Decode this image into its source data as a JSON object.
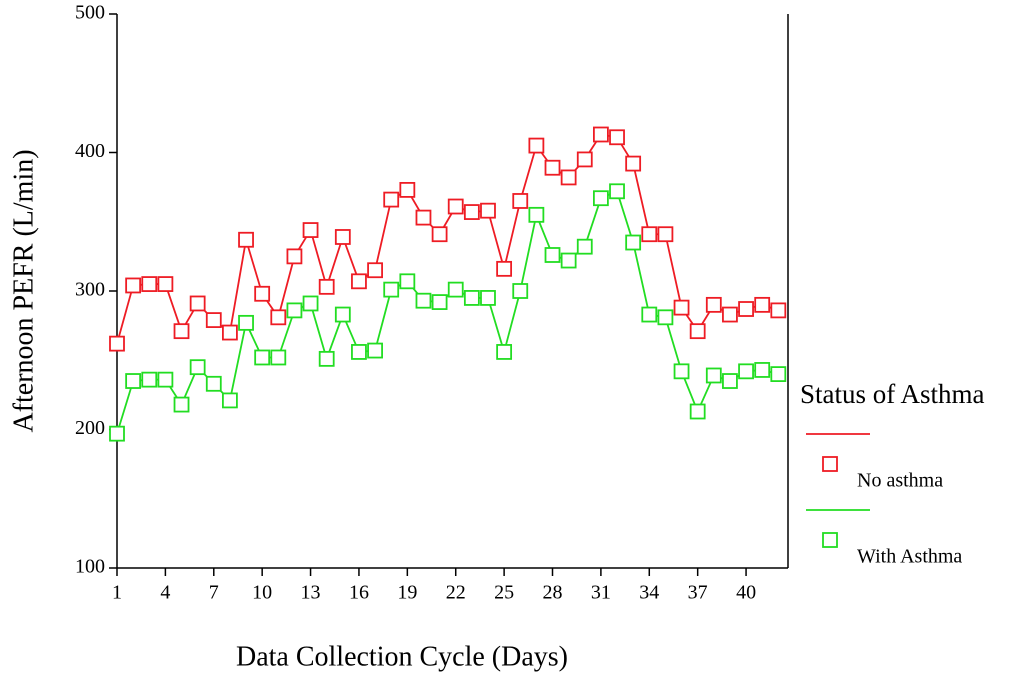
{
  "chart_data": {
    "type": "line",
    "x_label": "Data Collection Cycle (Days)",
    "y_label": "Afternoon PEFR (L/min)",
    "x": [
      1,
      2,
      3,
      4,
      5,
      6,
      7,
      8,
      9,
      10,
      11,
      12,
      13,
      14,
      15,
      16,
      17,
      18,
      19,
      20,
      21,
      22,
      23,
      24,
      25,
      26,
      27,
      28,
      29,
      30,
      31,
      32,
      33,
      34,
      35,
      36,
      37,
      38,
      39,
      40,
      41,
      42
    ],
    "series": [
      {
        "name": "No asthma",
        "color": "#ee1c24",
        "values": [
          262,
          304,
          305,
          305,
          271,
          291,
          279,
          270,
          337,
          298,
          281,
          325,
          344,
          303,
          339,
          307,
          315,
          366,
          373,
          353,
          341,
          361,
          357,
          358,
          316,
          365,
          405,
          389,
          382,
          395,
          413,
          411,
          392,
          341,
          341,
          288,
          271,
          290,
          283,
          287,
          290,
          286
        ]
      },
      {
        "name": "With Asthma",
        "color": "#22dd22",
        "values": [
          197,
          235,
          236,
          236,
          218,
          245,
          233,
          221,
          277,
          252,
          252,
          286,
          291,
          251,
          283,
          256,
          257,
          301,
          307,
          293,
          292,
          301,
          295,
          295,
          256,
          300,
          355,
          326,
          322,
          332,
          367,
          372,
          335,
          283,
          281,
          242,
          213,
          239,
          235,
          242,
          243,
          240
        ]
      }
    ],
    "legend_title": "Status of Asthma",
    "legend": "right",
    "xlim": [
      1,
      42.6
    ],
    "xticks": [
      1,
      4,
      7,
      10,
      13,
      16,
      19,
      22,
      25,
      28,
      31,
      34,
      37,
      40
    ],
    "ylim": [
      100,
      500
    ],
    "yticks": [
      100,
      200,
      300,
      400,
      500
    ],
    "grid": false,
    "marker": "square"
  }
}
